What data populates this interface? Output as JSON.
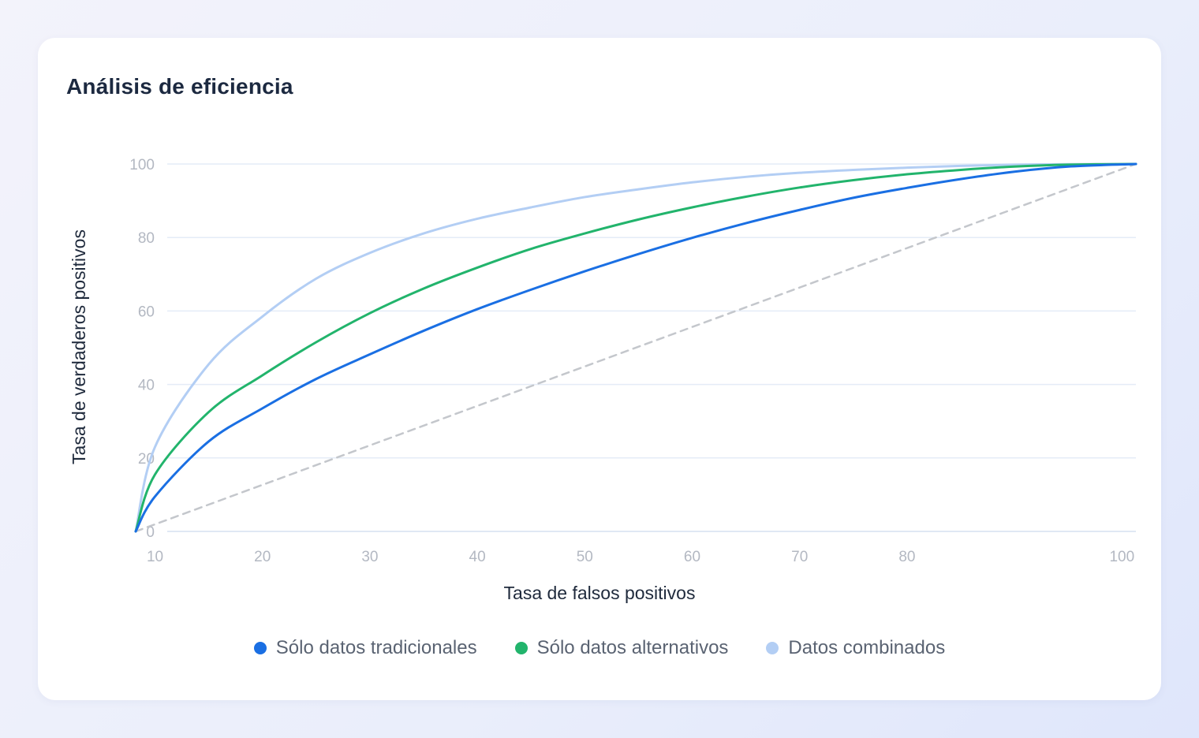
{
  "card": {
    "title": "Análisis de eficiencia"
  },
  "chart_data": {
    "type": "line",
    "title": "Análisis de eficiencia",
    "xlabel": "Tasa de falsos positivos",
    "ylabel": "Tasa de verdaderos positivos",
    "x_ticks": [
      10,
      20,
      30,
      40,
      50,
      60,
      70,
      80,
      100
    ],
    "y_ticks": [
      0,
      20,
      40,
      60,
      80,
      100
    ],
    "grid": "horizontal",
    "legend_position": "bottom",
    "x": [
      8.2,
      10,
      15,
      20,
      25,
      30,
      35,
      40,
      45,
      50,
      55,
      60,
      65,
      70,
      75,
      80,
      85,
      90,
      95,
      101.3
    ],
    "series": [
      {
        "name": "Sólo datos tradicionales",
        "color": "#1a6fe3",
        "dashed": false,
        "values": [
          0,
          9.5,
          24.5,
          33.5,
          41.5,
          48.2,
          54.6,
          60.5,
          65.8,
          70.8,
          75.5,
          79.9,
          83.9,
          87.5,
          90.8,
          93.5,
          95.9,
          97.9,
          99.3,
          100
        ]
      },
      {
        "name": "Sólo datos alternativos",
        "color": "#22b46c",
        "dashed": false,
        "values": [
          0,
          15.5,
          32.5,
          42.5,
          51.5,
          59.4,
          66.1,
          71.8,
          76.9,
          81.1,
          84.9,
          88.2,
          91.1,
          93.6,
          95.6,
          97.2,
          98.4,
          99.3,
          99.8,
          100
        ]
      },
      {
        "name": "Datos combinados",
        "color": "#b3cef4",
        "dashed": false,
        "values": [
          0,
          23,
          45.5,
          58.5,
          68.8,
          75.8,
          81.1,
          85.1,
          88.2,
          91,
          93.1,
          95,
          96.5,
          97.6,
          98.4,
          99,
          99.5,
          99.8,
          99.95,
          100
        ]
      },
      {
        "name": "",
        "color": "#c4c7cc",
        "dashed": true,
        "values": [
          0,
          1.9,
          7.3,
          12.6,
          18,
          23.4,
          28.8,
          34.2,
          39.6,
          44.9,
          50.3,
          55.7,
          61.1,
          66.5,
          71.9,
          77.3,
          82.6,
          88,
          93.4,
          100
        ]
      }
    ],
    "xlim": [
      8.2,
      101.3
    ],
    "ylim": [
      0,
      100
    ]
  }
}
